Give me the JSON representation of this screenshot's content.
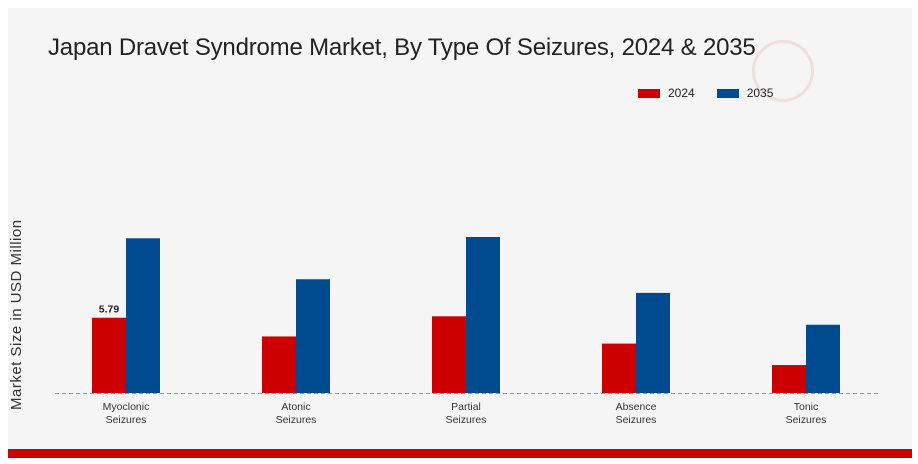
{
  "chart_data": {
    "type": "bar",
    "title": "Japan Dravet Syndrome Market, By Type Of Seizures, 2024 & 2035",
    "ylabel": "Market Size in USD Million",
    "xlabel": "",
    "categories": [
      [
        "Myoclonic",
        "Seizures"
      ],
      [
        "Atonic",
        "Seizures"
      ],
      [
        "Partial",
        "Seizures"
      ],
      [
        "Absence",
        "Seizures"
      ],
      [
        "Tonic",
        "Seizures"
      ]
    ],
    "series": [
      {
        "name": "2024",
        "color": "#cc0000",
        "values": [
          5.79,
          4.35,
          5.9,
          3.8,
          2.15
        ]
      },
      {
        "name": "2035",
        "color": "#004a8f",
        "values": [
          11.9,
          8.75,
          12.0,
          7.7,
          5.25
        ]
      }
    ],
    "data_labels": [
      {
        "series": 0,
        "index": 0,
        "text": "5.79"
      }
    ],
    "ylim": [
      0,
      14
    ],
    "grid": false,
    "legend_position": "top-right",
    "baseline_style": "dashed"
  }
}
